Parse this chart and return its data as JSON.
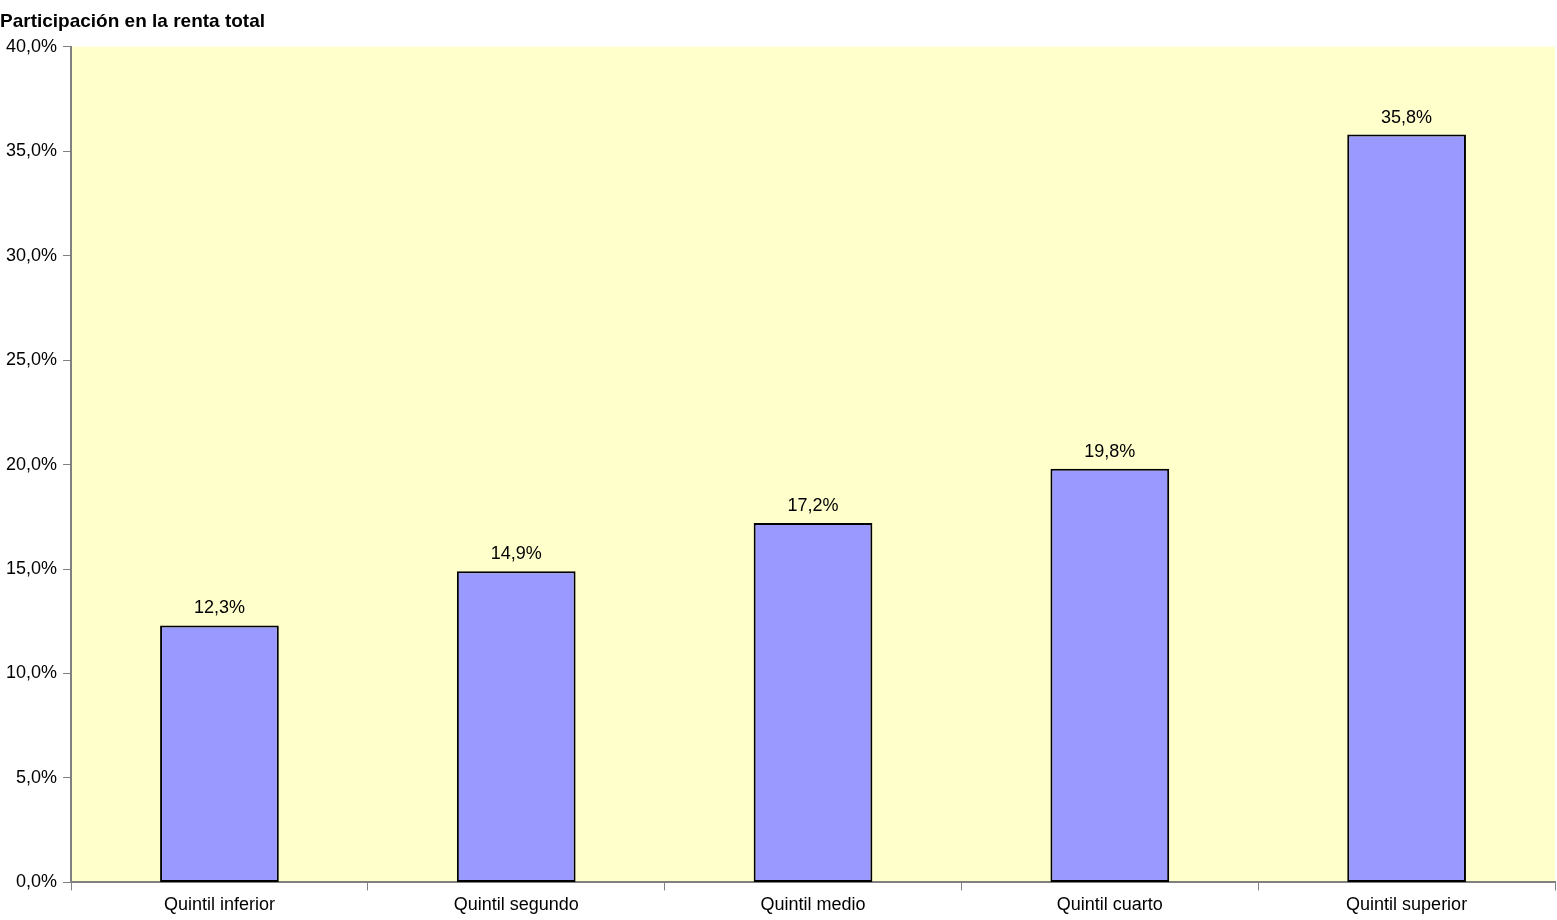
{
  "chart_data": {
    "type": "bar",
    "title": "Participación en la renta total",
    "categories": [
      "Quintil inferior",
      "Quintil segundo",
      "Quintil medio",
      "Quintil cuarto",
      "Quintil superior"
    ],
    "values": [
      12.3,
      14.9,
      17.2,
      19.8,
      35.8
    ],
    "value_labels": [
      "12,3%",
      "14,9%",
      "17,2%",
      "19,8%",
      "35,8%"
    ],
    "color": "#9999ff",
    "ylim": [
      0,
      40
    ],
    "yticks": [
      {
        "value": 0,
        "label": "0,0%"
      },
      {
        "value": 5,
        "label": "5,0%"
      },
      {
        "value": 10,
        "label": "10,0%"
      },
      {
        "value": 15,
        "label": "15,0%"
      },
      {
        "value": 20,
        "label": "20,0%"
      },
      {
        "value": 25,
        "label": "25,0%"
      },
      {
        "value": 30,
        "label": "30,0%"
      },
      {
        "value": 35,
        "label": "35,0%"
      },
      {
        "value": 40,
        "label": "40,0%"
      }
    ],
    "grid": false,
    "legend": false
  }
}
